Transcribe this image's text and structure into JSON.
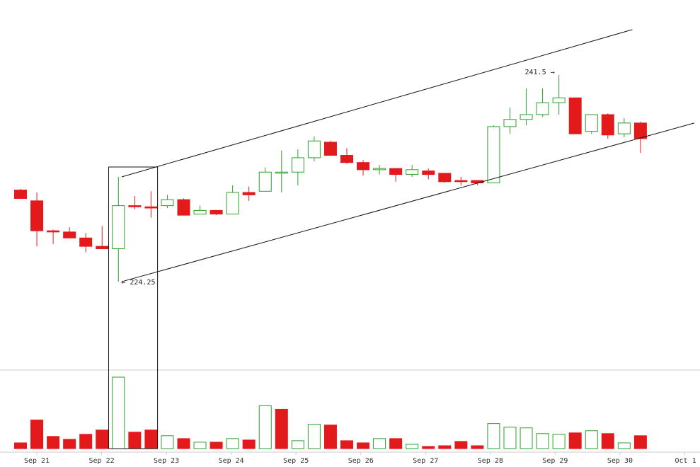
{
  "chart_data": {
    "type": "candlestick",
    "title": "",
    "xlabel": "",
    "ylabel": "",
    "grid": false,
    "legend": "none",
    "x_ticks": [
      "Sep 21",
      "Sep 22",
      "Sep 23",
      "Sep 24",
      "Sep 25",
      "Sep 26",
      "Sep 27",
      "Sep 28",
      "Sep 29",
      "Sep 30",
      "Oct 1"
    ],
    "y_range": [
      220,
      246
    ],
    "colors": {
      "up": "#2ca02c",
      "down": "#e31a1c",
      "line": "#111111",
      "axis": "#cccccc"
    },
    "candles": [
      {
        "o": 231.9,
        "h": 232.0,
        "l": 231.2,
        "c": 231.2
      },
      {
        "o": 231.0,
        "h": 231.7,
        "l": 227.2,
        "c": 228.5
      },
      {
        "o": 228.5,
        "h": 228.6,
        "l": 227.4,
        "c": 228.4
      },
      {
        "o": 228.4,
        "h": 228.8,
        "l": 227.9,
        "c": 227.9
      },
      {
        "o": 227.9,
        "h": 228.3,
        "l": 226.7,
        "c": 227.2
      },
      {
        "o": 227.2,
        "h": 228.9,
        "l": 227.0,
        "c": 227.0
      },
      {
        "o": 227.0,
        "h": 233.0,
        "l": 224.25,
        "c": 230.6
      },
      {
        "o": 230.6,
        "h": 231.4,
        "l": 230.3,
        "c": 230.5
      },
      {
        "o": 230.5,
        "h": 231.8,
        "l": 229.6,
        "c": 230.4
      },
      {
        "o": 230.6,
        "h": 231.5,
        "l": 230.4,
        "c": 231.1
      },
      {
        "o": 231.1,
        "h": 231.2,
        "l": 229.8,
        "c": 229.8
      },
      {
        "o": 229.9,
        "h": 230.6,
        "l": 229.9,
        "c": 230.2
      },
      {
        "o": 230.2,
        "h": 230.2,
        "l": 229.8,
        "c": 229.9
      },
      {
        "o": 229.9,
        "h": 232.3,
        "l": 229.9,
        "c": 231.7
      },
      {
        "o": 231.7,
        "h": 232.2,
        "l": 231.0,
        "c": 231.5
      },
      {
        "o": 231.8,
        "h": 233.8,
        "l": 231.8,
        "c": 233.4
      },
      {
        "o": 233.4,
        "h": 235.2,
        "l": 231.7,
        "c": 233.4
      },
      {
        "o": 233.4,
        "h": 235.3,
        "l": 232.3,
        "c": 234.6
      },
      {
        "o": 234.6,
        "h": 236.4,
        "l": 234.3,
        "c": 236.0
      },
      {
        "o": 235.9,
        "h": 236.0,
        "l": 234.8,
        "c": 234.8
      },
      {
        "o": 234.8,
        "h": 235.4,
        "l": 234.1,
        "c": 234.2
      },
      {
        "o": 234.2,
        "h": 234.4,
        "l": 233.1,
        "c": 233.6
      },
      {
        "o": 233.6,
        "h": 234.0,
        "l": 233.2,
        "c": 233.7
      },
      {
        "o": 233.7,
        "h": 233.7,
        "l": 232.6,
        "c": 233.2
      },
      {
        "o": 233.2,
        "h": 234.0,
        "l": 233.0,
        "c": 233.6
      },
      {
        "o": 233.5,
        "h": 233.7,
        "l": 232.8,
        "c": 233.2
      },
      {
        "o": 233.3,
        "h": 233.3,
        "l": 232.5,
        "c": 232.6
      },
      {
        "o": 232.7,
        "h": 233.0,
        "l": 232.3,
        "c": 232.6
      },
      {
        "o": 232.7,
        "h": 232.7,
        "l": 232.3,
        "c": 232.5
      },
      {
        "o": 232.5,
        "h": 237.3,
        "l": 232.5,
        "c": 237.2
      },
      {
        "o": 237.2,
        "h": 238.8,
        "l": 236.6,
        "c": 237.8
      },
      {
        "o": 237.8,
        "h": 240.4,
        "l": 237.3,
        "c": 238.2
      },
      {
        "o": 238.2,
        "h": 240.4,
        "l": 238.0,
        "c": 239.2
      },
      {
        "o": 239.2,
        "h": 241.5,
        "l": 238.2,
        "c": 239.6
      },
      {
        "o": 239.6,
        "h": 239.6,
        "l": 236.6,
        "c": 236.6
      },
      {
        "o": 236.8,
        "h": 238.2,
        "l": 236.6,
        "c": 238.2
      },
      {
        "o": 238.2,
        "h": 238.3,
        "l": 236.2,
        "c": 236.5
      },
      {
        "o": 236.6,
        "h": 237.9,
        "l": 236.3,
        "c": 237.5
      },
      {
        "o": 237.5,
        "h": 237.6,
        "l": 235.0,
        "c": 236.2
      }
    ],
    "volume": [
      {
        "v": 8,
        "up": false
      },
      {
        "v": 40,
        "up": false
      },
      {
        "v": 17,
        "up": false
      },
      {
        "v": 13,
        "up": false
      },
      {
        "v": 20,
        "up": false
      },
      {
        "v": 26,
        "up": false
      },
      {
        "v": 100,
        "up": true
      },
      {
        "v": 23,
        "up": false
      },
      {
        "v": 26,
        "up": false
      },
      {
        "v": 18,
        "up": true
      },
      {
        "v": 14,
        "up": false
      },
      {
        "v": 9,
        "up": true
      },
      {
        "v": 9,
        "up": false
      },
      {
        "v": 14,
        "up": true
      },
      {
        "v": 12,
        "up": false
      },
      {
        "v": 60,
        "up": true
      },
      {
        "v": 55,
        "up": false
      },
      {
        "v": 11,
        "up": true
      },
      {
        "v": 34,
        "up": true
      },
      {
        "v": 33,
        "up": false
      },
      {
        "v": 11,
        "up": false
      },
      {
        "v": 8,
        "up": false
      },
      {
        "v": 14,
        "up": true
      },
      {
        "v": 14,
        "up": false
      },
      {
        "v": 6,
        "up": true
      },
      {
        "v": 3,
        "up": false
      },
      {
        "v": 4,
        "up": false
      },
      {
        "v": 10,
        "up": false
      },
      {
        "v": 4,
        "up": false
      },
      {
        "v": 35,
        "up": true
      },
      {
        "v": 30,
        "up": true
      },
      {
        "v": 29,
        "up": true
      },
      {
        "v": 21,
        "up": true
      },
      {
        "v": 20,
        "up": true
      },
      {
        "v": 22,
        "up": false
      },
      {
        "v": 25,
        "up": true
      },
      {
        "v": 21,
        "up": false
      },
      {
        "v": 8,
        "up": true
      },
      {
        "v": 18,
        "up": false
      }
    ],
    "trendlines": [
      {
        "name": "upper-channel-line",
        "from": {
          "x": 6.2,
          "y": 233.0
        },
        "to": {
          "x": 37.5,
          "y": 245.3
        }
      },
      {
        "name": "lower-channel-line",
        "from": {
          "x": 6.2,
          "y": 224.25
        },
        "to": {
          "x": 41.3,
          "y": 237.5
        }
      }
    ],
    "highlight": {
      "from_index": 5.4,
      "to_index": 8.4
    },
    "annotations": [
      {
        "text": "← 224.25",
        "candle": 6,
        "y": 224.25
      },
      {
        "text": "241.5 →",
        "candle": 33,
        "y": 241.5
      }
    ]
  }
}
